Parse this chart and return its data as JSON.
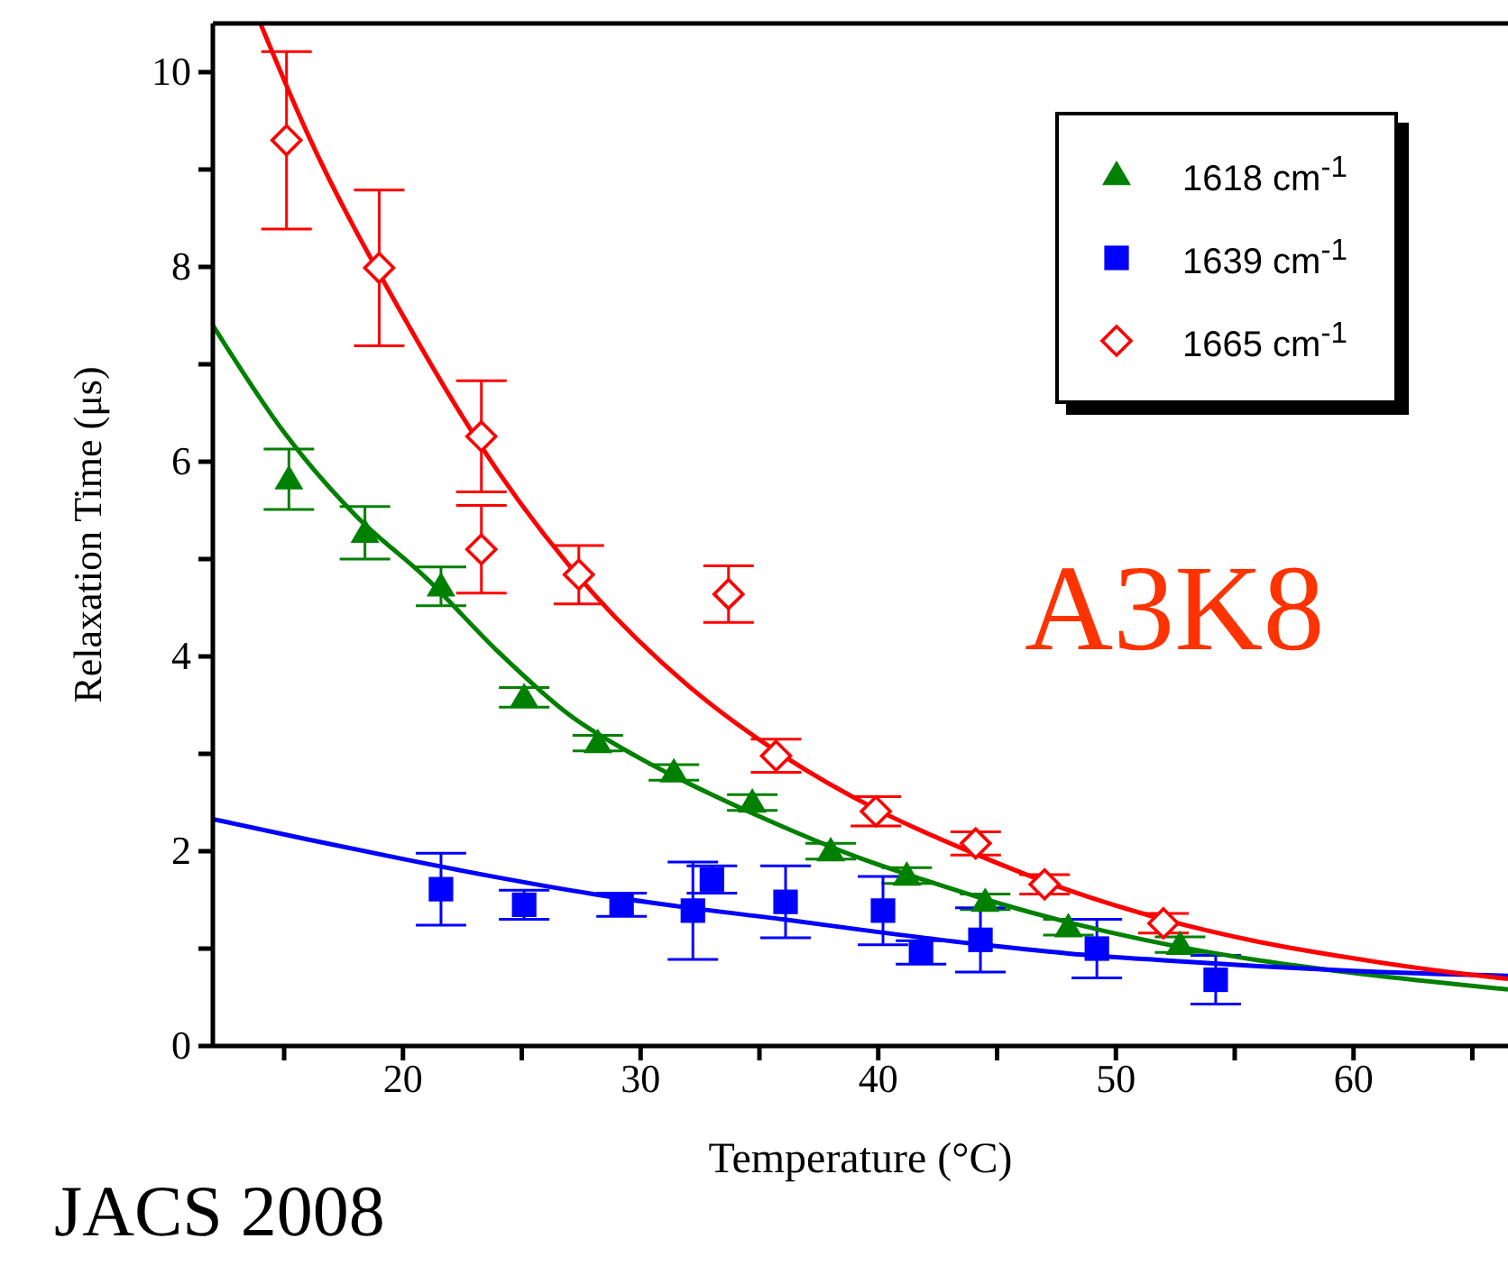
{
  "chart_data": {
    "type": "scatter",
    "xlabel": "Temperature (°C)",
    "ylabel": "Relaxation Time (μs)",
    "xlim": [
      12,
      66.5
    ],
    "ylim": [
      0,
      10.5
    ],
    "xticks": [
      {
        "value": 15,
        "label": null
      },
      20,
      {
        "value": 25,
        "label": null
      },
      30,
      {
        "value": 35,
        "label": null
      },
      40,
      {
        "value": 45,
        "label": null
      },
      50,
      {
        "value": 55,
        "label": null
      },
      60,
      {
        "value": 65,
        "label": null
      }
    ],
    "yticks": [
      0,
      {
        "value": 1,
        "label": null
      },
      2,
      {
        "value": 3,
        "label": null
      },
      4,
      {
        "value": 5,
        "label": null
      },
      6,
      {
        "value": 7,
        "label": null
      },
      8,
      {
        "value": 9,
        "label": null
      },
      10
    ],
    "legend": "top right",
    "grid": false,
    "annotations": [
      "A3K8",
      "JACS 2008"
    ],
    "series": [
      {
        "name": "1618 cm$^{-1}$",
        "type": "scatter",
        "marker": "triangle",
        "color": "#008000",
        "x": [
          15.2,
          18.4,
          21.6,
          25.1,
          28.2,
          31.4,
          34.7,
          38.0,
          41.2,
          44.5,
          48.0,
          52.7
        ],
        "values": [
          5.82,
          5.27,
          4.72,
          3.58,
          3.11,
          2.81,
          2.5,
          2.0,
          1.75,
          1.48,
          1.22,
          1.04
        ],
        "errors": [
          0.31,
          0.27,
          0.2,
          0.1,
          0.08,
          0.08,
          0.08,
          0.08,
          0.08,
          0.08,
          0.08,
          0.08
        ]
      },
      {
        "name": "1639 cm$^{-1}$",
        "type": "scatter",
        "marker": "square",
        "color": "#0000ff",
        "x": [
          21.6,
          25.1,
          29.2,
          32.2,
          33.0,
          36.1,
          40.2,
          41.8,
          44.3,
          49.2,
          54.2
        ],
        "values": [
          1.61,
          1.45,
          1.45,
          1.39,
          1.71,
          1.48,
          1.39,
          0.96,
          1.09,
          1.0,
          0.68
        ],
        "errors": [
          0.37,
          0.15,
          0.12,
          0.5,
          0.14,
          0.37,
          0.35,
          0.12,
          0.33,
          0.3,
          0.25
        ]
      },
      {
        "name": "1665 cm$^{-1}$",
        "type": "scatter",
        "marker": "diamond",
        "color": "#ff0000",
        "x": [
          15.1,
          19.0,
          23.3,
          23.3,
          27.4,
          33.7,
          35.7,
          39.9,
          44.1,
          47.0,
          52.0
        ],
        "values": [
          9.3,
          7.99,
          6.26,
          5.1,
          4.84,
          4.64,
          2.98,
          2.41,
          2.08,
          1.66,
          1.26
        ],
        "errors": [
          0.91,
          0.8,
          0.57,
          0.45,
          0.3,
          0.29,
          0.17,
          0.15,
          0.12,
          0.1,
          0.1
        ]
      },
      {
        "type": "line",
        "color": "#008000",
        "x": [
          12,
          15,
          18,
          21,
          24,
          27,
          30,
          33,
          36,
          39,
          42,
          45,
          48,
          52,
          56,
          60,
          66.5
        ],
        "values": [
          7.4,
          6.3,
          5.45,
          4.8,
          4.05,
          3.4,
          2.95,
          2.58,
          2.25,
          1.95,
          1.7,
          1.47,
          1.27,
          1.05,
          0.88,
          0.75,
          0.58
        ]
      },
      {
        "type": "line",
        "color": "#0000ff",
        "x": [
          12,
          16,
          20,
          24,
          28,
          32,
          36,
          40,
          44,
          48,
          52,
          56,
          60,
          66.5
        ],
        "values": [
          2.33,
          2.12,
          1.92,
          1.73,
          1.56,
          1.42,
          1.3,
          1.17,
          1.05,
          0.95,
          0.88,
          0.82,
          0.77,
          0.72
        ]
      },
      {
        "type": "line",
        "color": "#ff0000",
        "x": [
          14,
          16,
          20,
          24,
          28,
          32,
          36,
          40,
          44,
          48,
          52,
          56,
          60,
          64,
          66.5
        ],
        "values": [
          10.5,
          9.36,
          7.5,
          5.9,
          4.65,
          3.7,
          2.98,
          2.42,
          1.98,
          1.6,
          1.3,
          1.07,
          0.9,
          0.76,
          0.69
        ]
      }
    ]
  }
}
